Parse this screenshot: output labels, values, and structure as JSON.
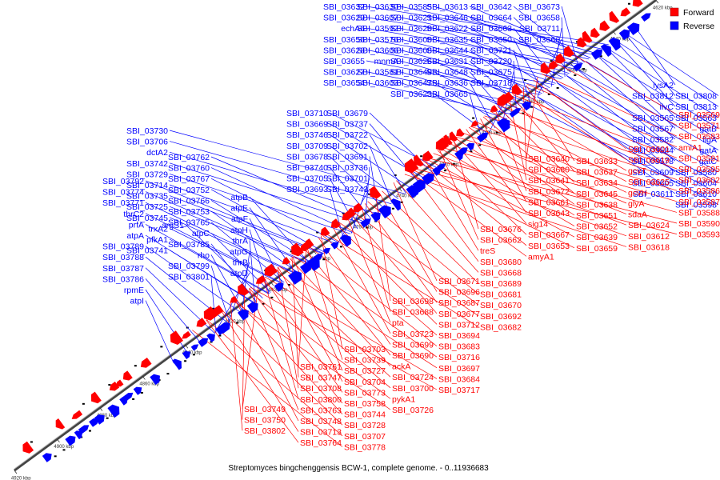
{
  "colors": {
    "forward": "#ff0000",
    "reverse": "#0000ff",
    "backbone": "#444444",
    "text": "#000000"
  },
  "legend": [
    {
      "label": "Forward",
      "strand": "forward"
    },
    {
      "label": "Reverse",
      "strand": "reverse"
    }
  ],
  "caption": "Streptomyces bingchenggensis BCW-1, complete genome. - 0..11936683",
  "genome": {
    "start_kbp": 4620,
    "end_kbp": 4920,
    "tick_step_kbp": 20,
    "tick_unit": "kbp"
  },
  "reverse_labels": [
    "SBI_03632",
    "SBI_03629",
    "echA6",
    "SBI_03656",
    "SBI_03628",
    "SBI_03655",
    "SBI_03627",
    "SBI_03654",
    "SBI_03630",
    "SBI_03607",
    "SBI_03592",
    "SBI_03576",
    "SBI_03606",
    "mnmA",
    "SBI_03581",
    "SBI_03603",
    "SBI_03585",
    "SBI_03621",
    "SBI_03620",
    "SBI_03600",
    "SBI_03608",
    "SBI_03626",
    "SBI_03649",
    "SBI_03647",
    "SBI_03623",
    "SBI_03613",
    "SBI_03646",
    "SBI_03622",
    "SBI_03635",
    "SBI_03644",
    "SBI_03631",
    "SBI_03648",
    "SBI_03636",
    "SBI_03665",
    "SBI_03642",
    "SBI_03664",
    "SBI_03663",
    "SBI_03650",
    "SBI_03721",
    "SBI_03720",
    "SBI_03675",
    "SBI_03718",
    "SBI_03673",
    "SBI_03658",
    "SBI_03711",
    "SBI_03666",
    "SBI_03710",
    "SBI_03669",
    "SBI_03746",
    "SBI_03709",
    "SBI_03678",
    "SBI_03740",
    "SBI_03705",
    "SBI_03693",
    "SBI_03679",
    "SBI_03737",
    "SBI_03722",
    "SBI_03702",
    "SBI_03691",
    "SBI_03736",
    "SBI_03701",
    "SBI_03743",
    "SBI_03730",
    "SBI_03706",
    "dctA2",
    "SBI_03742",
    "SBI_03729",
    "SBI_03714",
    "SBI_03735",
    "SBI_03725",
    "SBI_03745",
    "trxA2",
    "pfkA1",
    "SBI_03741",
    "SBI_03762",
    "SBI_03760",
    "SBI_03767",
    "SBI_03752",
    "SBI_03766",
    "SBI_03753",
    "SBI_03765",
    "atpC",
    "SBI_03785",
    "rho",
    "SBI_03799",
    "SBI_03801",
    "atpB",
    "atpE",
    "atpF",
    "atpH",
    "thrA",
    "atpG",
    "thrB",
    "atpD",
    "SBI_03792",
    "SBI_03774",
    "SBI_03771",
    "thrC2",
    "prfA",
    "atpA",
    "SBI_03789",
    "SBI_03788",
    "SBI_03787",
    "SBI_03786",
    "rpmE",
    "atpI",
    "argS1",
    "lysA2",
    "SBI_03808",
    "SBI_03812",
    "SBI_03813",
    "ilvC",
    "SBI_03563",
    "SBI_03565",
    "gatB",
    "SBI_03567",
    "ligA",
    "SBI_03582",
    "gatA",
    "SBI_03584",
    "gatC",
    "SBI_03578",
    "SBI_03580",
    "SBI_03609",
    "SBI_03604",
    "SBI_03605",
    "SBI_03610",
    "SBI_03611",
    "SBI_03598"
  ],
  "forward_labels": [
    "SBI_03569",
    "SBI_03571",
    "SBI_03583",
    "amiA1",
    "SBI_03591",
    "SBI_03595",
    "SBI_03602",
    "SBI_03586",
    "SBI_03587",
    "SBI_03588",
    "SBI_03590",
    "SBI_03593",
    "SBI_03601",
    "SBI_03619",
    "gcvT",
    "SBI_03625",
    "gcvH",
    "glyA",
    "sdaA",
    "SBI_03624",
    "SBI_03612",
    "SBI_03618",
    "SBI_03633",
    "SBI_03637",
    "SBI_03634",
    "SBI_03645",
    "SBI_03638",
    "SBI_03651",
    "SBI_03652",
    "SBI_03639",
    "SBI_03659",
    "SBI_03640",
    "SBI_03660",
    "SBI_03641",
    "SBI_03672",
    "SBI_03661",
    "SBI_03643",
    "sig14",
    "SBI_03667",
    "SBI_03653",
    "amyA1",
    "SBI_03676",
    "SBI_03662",
    "treS",
    "SBI_03680",
    "SBI_03668",
    "SBI_03689",
    "SBI_03681",
    "SBI_03670",
    "SBI_03692",
    "SBI_03682",
    "SBI_03671",
    "SBI_03696",
    "SBI_03687",
    "SBI_03677",
    "SBI_03712",
    "SBI_03694",
    "SBI_03683",
    "SBI_03716",
    "SBI_03697",
    "SBI_03684",
    "SBI_03717",
    "SBI_03698",
    "SBI_03688",
    "pta",
    "SBI_03723",
    "SBI_03699",
    "SBI_03690",
    "ackA",
    "SBI_03724",
    "SBI_03700",
    "pykA1",
    "SBI_03726",
    "SBI_03703",
    "SBI_03739",
    "SBI_03727",
    "SBI_03704",
    "SBI_03773",
    "SBI_03758",
    "SBI_03744",
    "SBI_03728",
    "SBI_03707",
    "SBI_03778",
    "SBI_03761",
    "SBI_03747",
    "SBI_03708",
    "SBI_03800",
    "SBI_03763",
    "SBI_03748",
    "SBI_03713",
    "SBI_03764",
    "SBI_03749",
    "SBI_03750",
    "SBI_03802"
  ]
}
